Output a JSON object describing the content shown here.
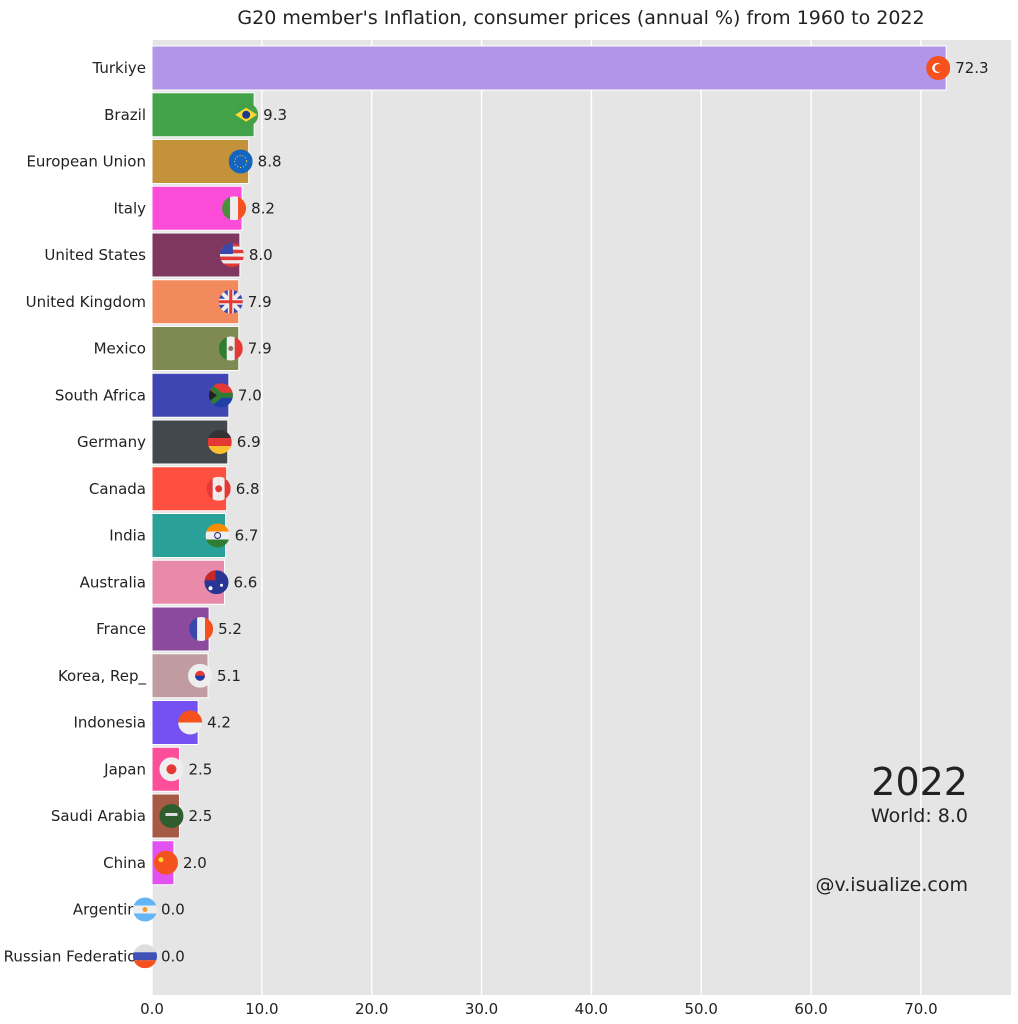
{
  "chart_data": {
    "type": "bar",
    "orientation": "horizontal",
    "title": "G20 member's Inflation, consumer prices (annual %) from 1960 to 2022",
    "xlim": [
      0,
      78.2
    ],
    "xticks": [
      "0.0",
      "10.0",
      "20.0",
      "30.0",
      "40.0",
      "50.0",
      "60.0",
      "70.0"
    ],
    "grid": true,
    "background": "#e5e5e5",
    "year": "2022",
    "world_label": "World: 8.0",
    "watermark": "@v.isualize.com",
    "bars": [
      {
        "name": "Turkiye",
        "value": 72.3,
        "label": "72.3",
        "color": "#b294e9",
        "flag": "turkey-flag-icon"
      },
      {
        "name": "Brazil",
        "value": 9.3,
        "label": "9.3",
        "color": "#42a34b",
        "flag": "brazil-flag-icon"
      },
      {
        "name": "European Union",
        "value": 8.8,
        "label": "8.8",
        "color": "#c4923a",
        "flag": "eu-flag-icon"
      },
      {
        "name": "Italy",
        "value": 8.2,
        "label": "8.2",
        "color": "#fd4cd7",
        "flag": "italy-flag-icon"
      },
      {
        "name": "United States",
        "value": 8.0,
        "label": "8.0",
        "color": "#7f3760",
        "flag": "us-flag-icon"
      },
      {
        "name": "United Kingdom",
        "value": 7.9,
        "label": "7.9",
        "color": "#f28a5e",
        "flag": "uk-flag-icon"
      },
      {
        "name": "Mexico",
        "value": 7.9,
        "label": "7.9",
        "color": "#7f8a52",
        "flag": "mexico-flag-icon"
      },
      {
        "name": "South Africa",
        "value": 7.0,
        "label": "7.0",
        "color": "#3e46b3",
        "flag": "south-africa-flag-icon"
      },
      {
        "name": "Germany",
        "value": 6.9,
        "label": "6.9",
        "color": "#43484c",
        "flag": "germany-flag-icon"
      },
      {
        "name": "Canada",
        "value": 6.8,
        "label": "6.8",
        "color": "#fe4f40",
        "flag": "canada-flag-icon"
      },
      {
        "name": "India",
        "value": 6.7,
        "label": "6.7",
        "color": "#2aa198",
        "flag": "india-flag-icon"
      },
      {
        "name": "Australia",
        "value": 6.6,
        "label": "6.6",
        "color": "#e98aaa",
        "flag": "australia-flag-icon"
      },
      {
        "name": "France",
        "value": 5.2,
        "label": "5.2",
        "color": "#8c4a9f",
        "flag": "france-flag-icon"
      },
      {
        "name": "Korea, Rep_",
        "value": 5.1,
        "label": "5.1",
        "color": "#c09ca0",
        "flag": "korea-flag-icon"
      },
      {
        "name": "Indonesia",
        "value": 4.2,
        "label": "4.2",
        "color": "#7451f0",
        "flag": "indonesia-flag-icon"
      },
      {
        "name": "Japan",
        "value": 2.5,
        "label": "2.5",
        "color": "#fd4e9a",
        "flag": "japan-flag-icon"
      },
      {
        "name": "Saudi Arabia",
        "value": 2.5,
        "label": "2.5",
        "color": "#a55a45",
        "flag": "saudi-flag-icon"
      },
      {
        "name": "China",
        "value": 2.0,
        "label": "2.0",
        "color": "#e152f0",
        "flag": "china-flag-icon"
      },
      {
        "name": "Argentina",
        "value": 0.0,
        "label": "0.0",
        "color": "#888888",
        "flag": "argentina-flag-icon"
      },
      {
        "name": "Russian Federation",
        "value": 0.0,
        "label": "0.0",
        "color": "#888888",
        "flag": "russia-flag-icon"
      }
    ]
  }
}
